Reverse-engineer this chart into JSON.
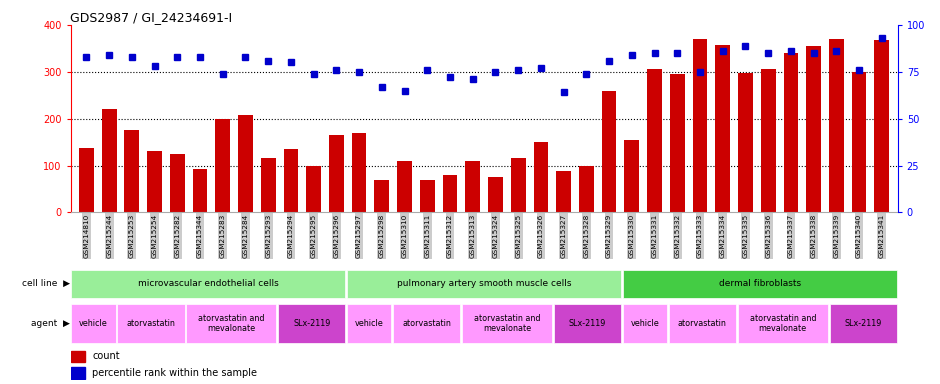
{
  "title": "GDS2987 / GI_24234691-I",
  "categories": [
    "GSM214810",
    "GSM215244",
    "GSM215253",
    "GSM215254",
    "GSM215282",
    "GSM215344",
    "GSM215283",
    "GSM215284",
    "GSM215293",
    "GSM215294",
    "GSM215295",
    "GSM215296",
    "GSM215297",
    "GSM215298",
    "GSM215310",
    "GSM215311",
    "GSM215312",
    "GSM215313",
    "GSM215324",
    "GSM215325",
    "GSM215326",
    "GSM215327",
    "GSM215328",
    "GSM215329",
    "GSM215330",
    "GSM215331",
    "GSM215332",
    "GSM215333",
    "GSM215334",
    "GSM215335",
    "GSM215336",
    "GSM215337",
    "GSM215338",
    "GSM215339",
    "GSM215340",
    "GSM215341"
  ],
  "bar_values": [
    138,
    220,
    175,
    130,
    125,
    92,
    200,
    207,
    117,
    135,
    100,
    165,
    170,
    70,
    110,
    68,
    80,
    110,
    75,
    115,
    150,
    88,
    100,
    260,
    155,
    305,
    295,
    370,
    358,
    298,
    305,
    340,
    355,
    370,
    300,
    367
  ],
  "scatter_pct": [
    83,
    84,
    83,
    78,
    83,
    83,
    74,
    83,
    81,
    80,
    74,
    76,
    75,
    67,
    65,
    76,
    72,
    71,
    75,
    76,
    77,
    64,
    74,
    81,
    84,
    85,
    85,
    75,
    86,
    89,
    85,
    86,
    85,
    86,
    76,
    93
  ],
  "bar_color": "#cc0000",
  "scatter_color": "#0000cc",
  "ylim_left": [
    0,
    400
  ],
  "ylim_right": [
    0,
    100
  ],
  "yticks_left": [
    0,
    100,
    200,
    300,
    400
  ],
  "yticks_right": [
    0,
    25,
    50,
    75,
    100
  ],
  "background_color": "#ffffff",
  "tick_bg_color": "#cccccc",
  "cell_line_groups": [
    {
      "label": "microvascular endothelial cells",
      "start": 0,
      "end": 11,
      "color": "#99ee99"
    },
    {
      "label": "pulmonary artery smooth muscle cells",
      "start": 12,
      "end": 23,
      "color": "#99ee99"
    },
    {
      "label": "dermal fibroblasts",
      "start": 24,
      "end": 35,
      "color": "#44cc44"
    }
  ],
  "agent_groups": [
    {
      "label": "vehicle",
      "start": 0,
      "end": 1,
      "color": "#ff99ff"
    },
    {
      "label": "atorvastatin",
      "start": 2,
      "end": 4,
      "color": "#ff99ff"
    },
    {
      "label": "atorvastatin and\nmevalonate",
      "start": 5,
      "end": 8,
      "color": "#ff99ff"
    },
    {
      "label": "SLx-2119",
      "start": 9,
      "end": 11,
      "color": "#cc44cc"
    },
    {
      "label": "vehicle",
      "start": 12,
      "end": 13,
      "color": "#ff99ff"
    },
    {
      "label": "atorvastatin",
      "start": 14,
      "end": 16,
      "color": "#ff99ff"
    },
    {
      "label": "atorvastatin and\nmevalonate",
      "start": 17,
      "end": 20,
      "color": "#ff99ff"
    },
    {
      "label": "SLx-2119",
      "start": 21,
      "end": 23,
      "color": "#cc44cc"
    },
    {
      "label": "vehicle",
      "start": 24,
      "end": 25,
      "color": "#ff99ff"
    },
    {
      "label": "atorvastatin",
      "start": 26,
      "end": 28,
      "color": "#ff99ff"
    },
    {
      "label": "atorvastatin and\nmevalonate",
      "start": 29,
      "end": 32,
      "color": "#ff99ff"
    },
    {
      "label": "SLx-2119",
      "start": 33,
      "end": 35,
      "color": "#cc44cc"
    }
  ],
  "legend_count_color": "#cc0000",
  "legend_scatter_color": "#0000cc"
}
